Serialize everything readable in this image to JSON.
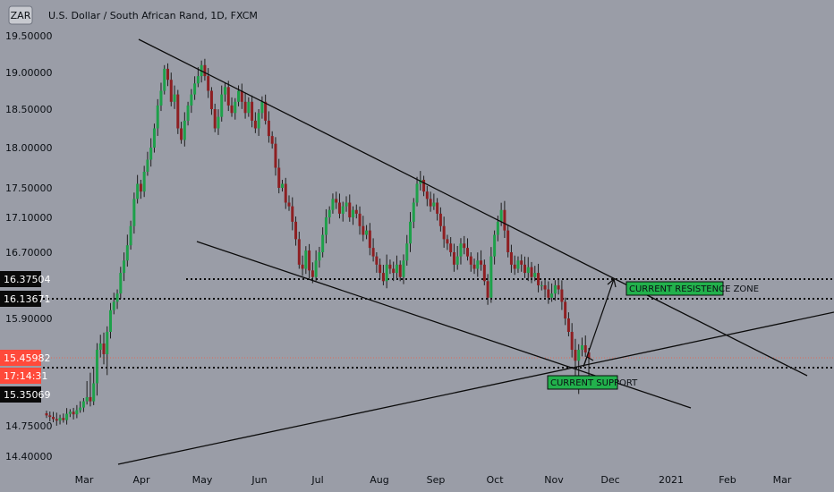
{
  "header": {
    "symbol_badge": "ZAR",
    "title": "U.S. Dollar / South African Rand, 1D, FXCM"
  },
  "colors": {
    "background": "#9a9da7",
    "candle_up": "#1ea04a",
    "candle_down": "#8e1f22",
    "wick": "#1e1e1e",
    "trendline": "#0b0b0b",
    "dotted": "#0b0b0b",
    "label_green_bg": "#22b14c",
    "price_tag_black": "#0a0a0a",
    "price_tag_red": "#ff4a3b"
  },
  "chart_data": {
    "type": "candlestick",
    "title": "U.S. Dollar / South African Rand, 1D, FXCM",
    "x_ticks": [
      "Mar",
      "Apr",
      "May",
      "Jun",
      "Jul",
      "Aug",
      "Sep",
      "Oct",
      "Nov",
      "Dec",
      "2021",
      "Feb",
      "Mar"
    ],
    "y_ticks": [
      "19.50000",
      "19.00000",
      "18.50000",
      "18.00000",
      "17.50000",
      "17.10000",
      "16.70000",
      "16.37504",
      "16.13671",
      "15.90000",
      "15.45982",
      "17:14:31",
      "15.35069",
      "14.75000",
      "14.40000"
    ],
    "y_tick_values": [
      19.5,
      19.0,
      18.5,
      18.0,
      17.5,
      17.1,
      16.7,
      16.37504,
      16.13671,
      15.9,
      15.45982,
      15.4,
      15.35069,
      14.75,
      14.4
    ],
    "y_log_scale": true,
    "current_price": 15.45982,
    "countdown_label": "17:14:31",
    "series": [
      {
        "approx_closes": [
          14.95,
          14.92,
          14.88,
          14.85,
          14.9,
          14.86,
          14.98,
          15.02,
          14.97,
          15.05,
          15.1,
          15.22,
          15.3,
          15.22,
          15.38,
          15.55,
          15.62,
          15.5,
          15.75,
          16.0,
          16.1,
          16.2,
          16.45,
          16.6,
          16.78,
          17.0,
          17.35,
          17.55,
          17.45,
          17.7,
          17.85,
          18.0,
          18.25,
          18.55,
          18.75,
          19.05,
          18.9,
          18.6,
          18.7,
          18.25,
          18.1,
          18.35,
          18.55,
          18.7,
          18.85,
          18.95,
          19.1,
          18.95,
          18.75,
          18.5,
          18.25,
          18.4,
          18.7,
          18.8,
          18.55,
          18.45,
          18.6,
          18.75,
          18.6,
          18.45,
          18.6,
          18.35,
          18.25,
          18.45,
          18.6,
          18.35,
          18.15,
          18.05,
          17.75,
          17.5,
          17.55,
          17.3,
          17.25,
          17.05,
          16.85,
          16.55,
          16.5,
          16.72,
          16.48,
          16.4,
          16.6,
          16.7,
          16.9,
          17.1,
          17.2,
          17.35,
          17.3,
          17.15,
          17.25,
          17.3,
          17.1,
          17.2,
          17.15,
          17.0,
          16.9,
          16.95,
          16.75,
          16.65,
          16.55,
          16.45,
          16.35,
          16.55,
          16.5,
          16.45,
          16.55,
          16.4,
          16.6,
          16.8,
          17.05,
          17.3,
          17.55,
          17.6,
          17.45,
          17.35,
          17.25,
          17.3,
          17.15,
          17.0,
          16.85,
          16.8,
          16.7,
          16.55,
          16.65,
          16.8,
          16.75,
          16.65,
          16.55,
          16.5,
          16.6,
          16.55,
          16.35,
          16.15,
          16.65,
          16.9,
          17.05,
          17.2,
          16.95,
          16.7,
          16.55,
          16.5,
          16.6,
          16.55,
          16.45,
          16.52,
          16.4,
          16.45,
          16.3,
          16.3,
          16.25,
          16.15,
          16.2,
          16.3,
          16.25,
          16.1,
          15.9,
          15.75,
          15.55,
          15.45,
          15.55,
          15.6,
          15.52,
          15.46
        ]
      }
    ],
    "annotations": [
      {
        "text": "CURRENT RESISTENCE ZONE"
      },
      {
        "text": "CURRENT SUPPORT"
      }
    ]
  }
}
